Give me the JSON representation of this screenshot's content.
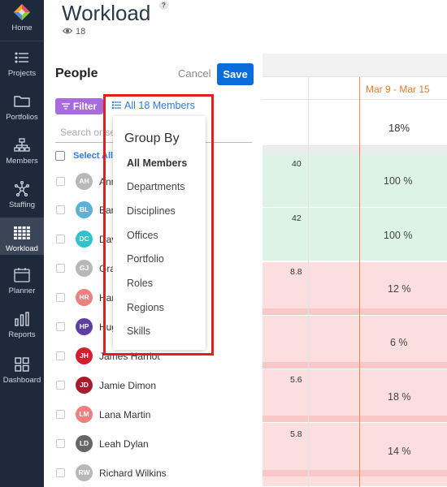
{
  "nav": {
    "items": [
      {
        "label": "Home",
        "icon": "home-logo-icon"
      },
      {
        "label": "Projects",
        "icon": "projects-list-icon"
      },
      {
        "label": "Portfolios",
        "icon": "folder-icon"
      },
      {
        "label": "Members",
        "icon": "members-tree-icon"
      },
      {
        "label": "Staffing",
        "icon": "staffing-network-icon"
      },
      {
        "label": "Workload",
        "icon": "workload-grid-icon",
        "active": true
      },
      {
        "label": "Planner",
        "icon": "planner-calendar-icon"
      },
      {
        "label": "Reports",
        "icon": "reports-chart-icon"
      },
      {
        "label": "Dashboard",
        "icon": "dashboard-grid-icon"
      }
    ]
  },
  "header": {
    "title": "Workload",
    "help": "?",
    "viewers_count": "18"
  },
  "panel": {
    "title": "People",
    "cancel": "Cancel",
    "save": "Save",
    "filter": "Filter",
    "group_button": "All 18 Members",
    "search_placeholder": "Search or select",
    "select_all": "Select All",
    "members": [
      {
        "initials": "AH",
        "name": "Annie Hall",
        "color": "#b8b8b8"
      },
      {
        "initials": "BL",
        "name": "Barbara Lee",
        "color": "#5ab3d6"
      },
      {
        "initials": "DC",
        "name": "David Chen",
        "color": "#2ec4c9"
      },
      {
        "initials": "GJ",
        "name": "Grace Jones",
        "color": "#b8b8b8"
      },
      {
        "initials": "HR",
        "name": "Harry Reid",
        "color": "#f08080"
      },
      {
        "initials": "HP",
        "name": "Hugh Phillips",
        "color": "#5b3fa3"
      },
      {
        "initials": "JH",
        "name": "James Harriot",
        "color": "#d1202f"
      },
      {
        "initials": "JD",
        "name": "Jamie Dimon",
        "color": "#a61c2d"
      },
      {
        "initials": "LM",
        "name": "Lana Martin",
        "color": "#f08080"
      },
      {
        "initials": "LD",
        "name": "Leah Dylan",
        "color": "#666666"
      },
      {
        "initials": "RW",
        "name": "Richard Wilkins",
        "color": "#b8b8b8"
      }
    ]
  },
  "group_by": {
    "heading": "Group By",
    "options": [
      "All Members",
      "Departments",
      "Disciplines",
      "Offices",
      "Portfolio",
      "Roles",
      "Regions",
      "Skills"
    ],
    "selected": "All Members"
  },
  "timeline": {
    "week_label": "Mar 9 - Mar 15",
    "summary_pct": "18%",
    "rows": [
      {
        "hours": "40",
        "pct": "100 %",
        "status": "green"
      },
      {
        "hours": "42",
        "pct": "100 %",
        "status": "green"
      },
      {
        "hours": "8.8",
        "pct": "12 %",
        "status": "red"
      },
      {
        "hours": "",
        "pct": "6 %",
        "status": "red"
      },
      {
        "hours": "5.6",
        "pct": "18 %",
        "status": "red"
      },
      {
        "hours": "5.8",
        "pct": "14 %",
        "status": "red"
      }
    ]
  },
  "colors": {
    "nav_bg": "#1e2a3b",
    "save": "#0b6dd9",
    "filter": "#a86bdc",
    "link": "#2d7be5",
    "today": "#ef8c45",
    "highlight": "#e02020"
  }
}
